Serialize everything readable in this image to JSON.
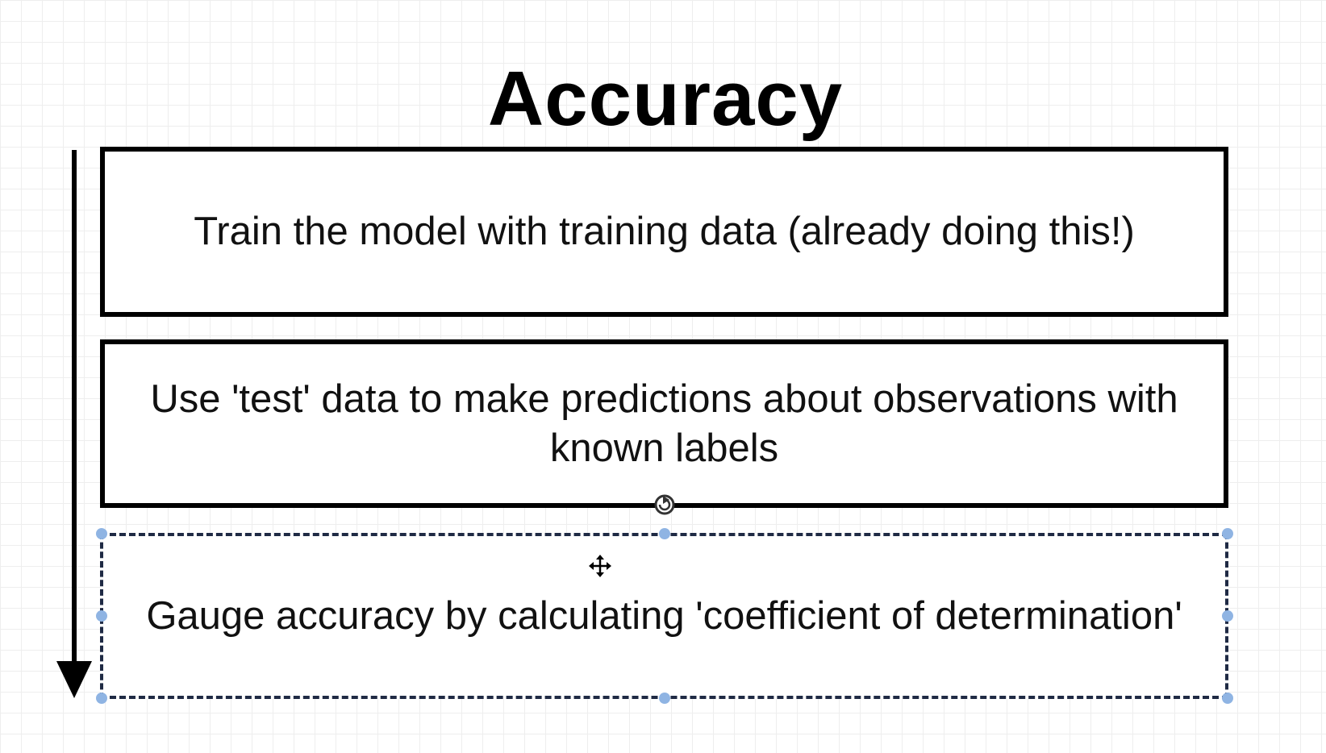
{
  "diagram": {
    "title": "Accuracy",
    "steps": [
      {
        "label": "Train the model with training data (already doing this!)"
      },
      {
        "label": "Use 'test' data to make predictions about observations with known labels"
      },
      {
        "label": "Gauge accuracy by calculating 'coefficient of determination'"
      }
    ],
    "flow_direction": "top-to-bottom",
    "selected_step": 3
  },
  "colors": {
    "stroke": "#000000",
    "selection_handle": "#8fb4e3",
    "grid": "#eeeeee",
    "background": "#ffffff"
  },
  "icons": {
    "rotate_handle": "rotate-icon",
    "move_cursor": "move-cursor-icon"
  }
}
